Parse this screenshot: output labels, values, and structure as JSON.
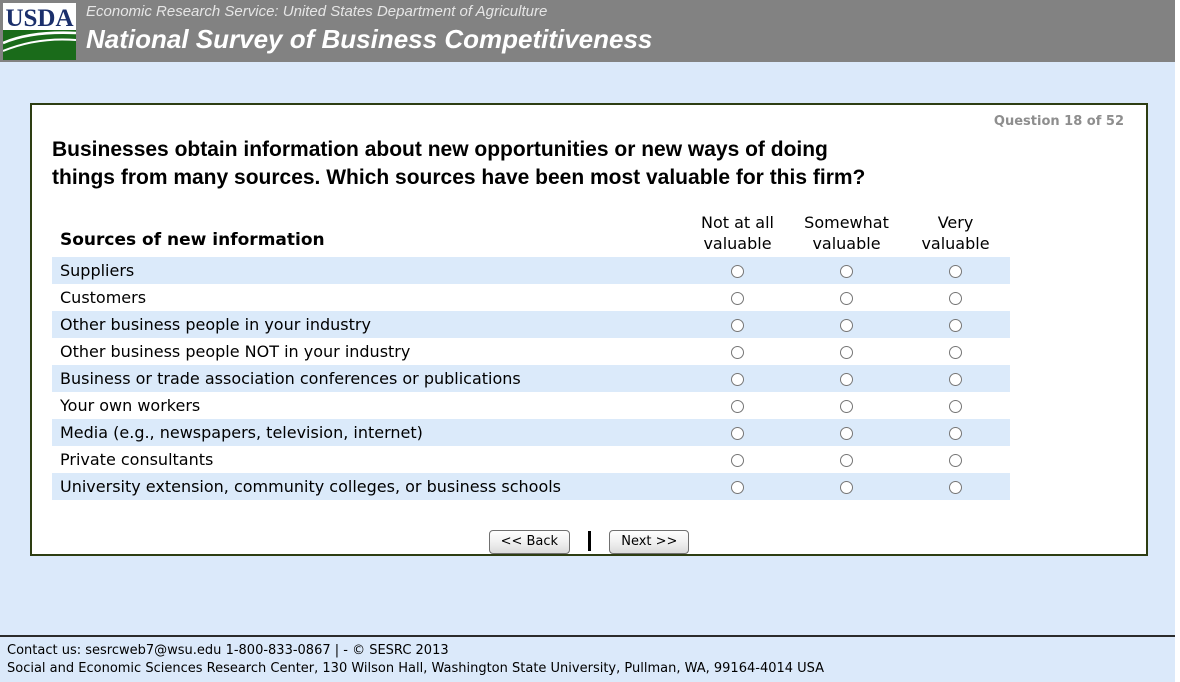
{
  "header": {
    "logo_text": "USDA",
    "agency_line": "Economic Research Service: United States Department of Agriculture",
    "title": "National Survey of Business Competitiveness"
  },
  "question": {
    "counter": "Question 18 of 52",
    "line1": "Businesses obtain information about new opportunities or new ways of doing",
    "line2": "things from many sources. Which sources have been most valuable for this firm?"
  },
  "table": {
    "row_header": "Sources of new information",
    "columns": [
      {
        "line1": "Not at all",
        "line2": "valuable"
      },
      {
        "line1": "Somewhat",
        "line2": "valuable"
      },
      {
        "line1": "Very",
        "line2": "valuable"
      }
    ],
    "rows": [
      "Suppliers",
      "Customers",
      "Other business people in your industry",
      "Other business people NOT in your industry",
      "Business or trade association conferences or publications",
      "Your own workers",
      "Media (e.g., newspapers, television, internet)",
      "Private consultants",
      "University extension, community colleges, or business schools"
    ]
  },
  "nav": {
    "back_label": "<< Back",
    "next_label": "Next >>"
  },
  "footer": {
    "contact_prefix": "Contact us:",
    "email": "sesrcweb7@wsu.edu",
    "contact_suffix": "1-800-833-0867 | - © SESRC 2013",
    "address": "Social and Economic Sciences Research Center, 130 Wilson Hall, Washington State University, Pullman, WA, 99164-4014 USA"
  },
  "colors": {
    "header_bg": "#828282",
    "page_bg": "#dbe9fa",
    "row_stripe": "#dbeafa",
    "panel_border": "#2d3d12",
    "logo_navy": "#1b2f6b",
    "logo_green": "#1a6b1a"
  }
}
